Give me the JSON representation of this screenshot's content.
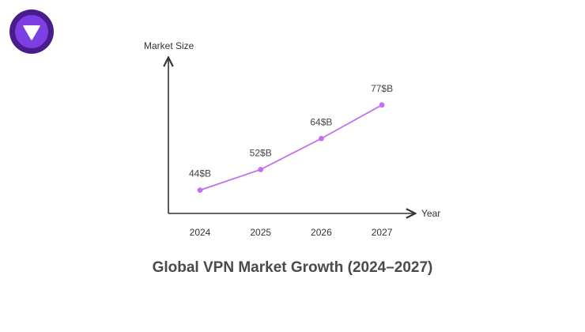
{
  "logo": {
    "icon": "shield-logo-icon",
    "colors": {
      "outer": "#4a1d8c",
      "inner": "#7b3fe4",
      "mark": "#ffffff"
    }
  },
  "chart_data": {
    "type": "line",
    "title": "Global VPN Market Growth (2024–2027)",
    "xlabel": "Year",
    "ylabel": "Market Size",
    "categories": [
      "2024",
      "2025",
      "2026",
      "2027"
    ],
    "series": [
      {
        "values": [
          44,
          52,
          64,
          77
        ],
        "data_labels": [
          "44$B",
          "52$B",
          "64$B",
          "77$B"
        ],
        "color": "#c46ef0"
      }
    ],
    "ylim": [
      35,
      95
    ],
    "grid": false,
    "legend": "none"
  }
}
